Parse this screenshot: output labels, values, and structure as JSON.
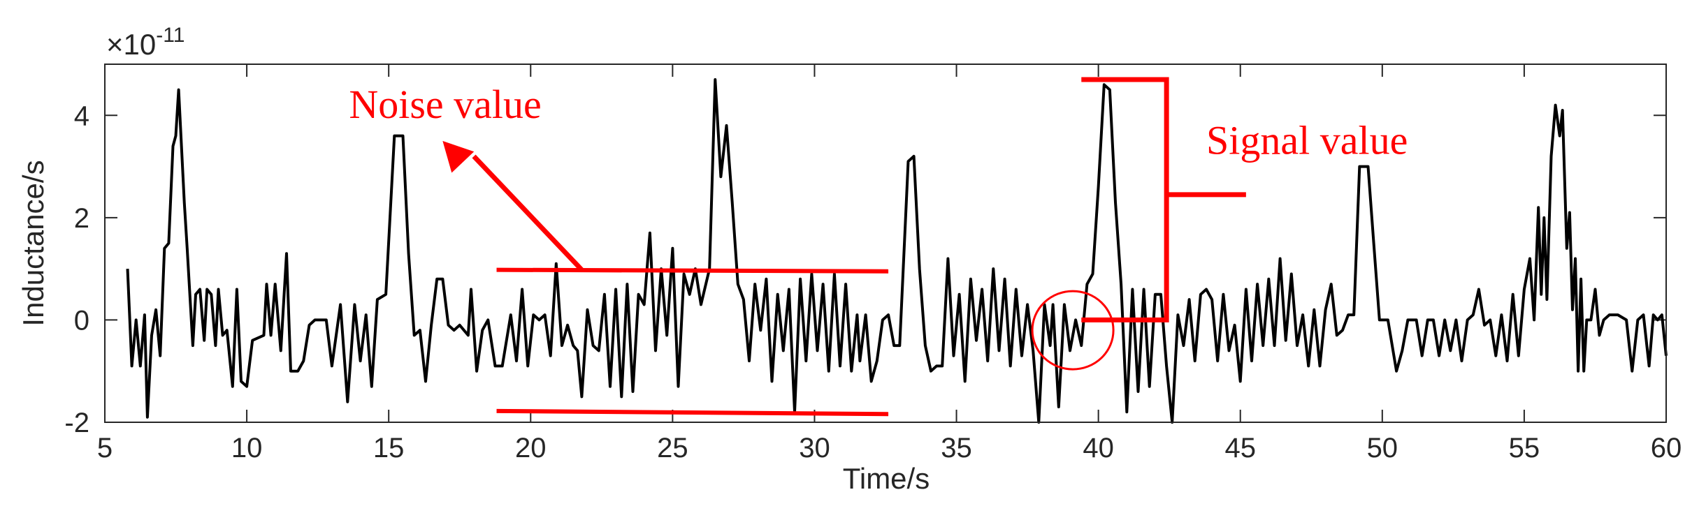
{
  "chart_data": {
    "type": "line",
    "xlabel": "Time/s",
    "ylabel": "Inductance/s",
    "xlim": [
      5,
      60
    ],
    "ylim": [
      -2,
      5
    ],
    "y_exponent": {
      "base": "×10",
      "power": "-11"
    },
    "xticks": [
      5,
      10,
      15,
      20,
      25,
      30,
      35,
      40,
      45,
      50,
      55,
      60
    ],
    "yticks": [
      -2,
      0,
      2,
      4
    ],
    "grid": false,
    "line_color": "#000000",
    "annotation_color": "#ff0000",
    "series": [
      {
        "values": [
          [
            5.8,
            1.0
          ],
          [
            5.95,
            -0.9
          ],
          [
            6.1,
            0.0
          ],
          [
            6.25,
            -0.9
          ],
          [
            6.4,
            0.1
          ],
          [
            6.5,
            -1.9
          ],
          [
            6.65,
            -0.3
          ],
          [
            6.8,
            0.2
          ],
          [
            6.95,
            -0.7
          ],
          [
            7.1,
            1.4
          ],
          [
            7.25,
            1.5
          ],
          [
            7.4,
            3.4
          ],
          [
            7.5,
            3.6
          ],
          [
            7.6,
            4.5
          ],
          [
            7.8,
            2.3
          ],
          [
            7.9,
            1.4
          ],
          [
            8.1,
            -0.5
          ],
          [
            8.2,
            0.5
          ],
          [
            8.35,
            0.6
          ],
          [
            8.5,
            -0.4
          ],
          [
            8.6,
            0.6
          ],
          [
            8.75,
            0.5
          ],
          [
            8.9,
            -0.5
          ],
          [
            9.0,
            0.6
          ],
          [
            9.15,
            -0.3
          ],
          [
            9.3,
            -0.2
          ],
          [
            9.5,
            -1.3
          ],
          [
            9.65,
            0.6
          ],
          [
            9.8,
            -1.2
          ],
          [
            10.0,
            -1.3
          ],
          [
            10.2,
            -0.4
          ],
          [
            10.6,
            -0.3
          ],
          [
            10.7,
            0.7
          ],
          [
            10.85,
            -0.3
          ],
          [
            11.0,
            0.7
          ],
          [
            11.2,
            -0.6
          ],
          [
            11.4,
            1.3
          ],
          [
            11.55,
            -1.0
          ],
          [
            11.8,
            -1.0
          ],
          [
            12.0,
            -0.8
          ],
          [
            12.2,
            -0.1
          ],
          [
            12.4,
            0.0
          ],
          [
            12.8,
            0.0
          ],
          [
            13.0,
            -0.9
          ],
          [
            13.3,
            0.3
          ],
          [
            13.55,
            -1.6
          ],
          [
            13.8,
            0.3
          ],
          [
            14.0,
            -0.8
          ],
          [
            14.2,
            0.1
          ],
          [
            14.4,
            -1.3
          ],
          [
            14.6,
            0.4
          ],
          [
            14.9,
            0.5
          ],
          [
            15.2,
            3.6
          ],
          [
            15.5,
            3.6
          ],
          [
            15.7,
            1.3
          ],
          [
            15.9,
            -0.3
          ],
          [
            16.1,
            -0.2
          ],
          [
            16.3,
            -1.2
          ],
          [
            16.5,
            -0.1
          ],
          [
            16.7,
            0.8
          ],
          [
            16.9,
            0.8
          ],
          [
            17.1,
            -0.1
          ],
          [
            17.3,
            -0.2
          ],
          [
            17.5,
            -0.1
          ],
          [
            17.8,
            -0.3
          ],
          [
            17.9,
            0.6
          ],
          [
            18.1,
            -1.0
          ],
          [
            18.3,
            -0.2
          ],
          [
            18.5,
            0.0
          ],
          [
            18.75,
            -0.9
          ],
          [
            19.0,
            -0.9
          ],
          [
            19.3,
            0.1
          ],
          [
            19.5,
            -0.8
          ],
          [
            19.7,
            0.6
          ],
          [
            19.9,
            -0.9
          ],
          [
            20.1,
            0.1
          ],
          [
            20.3,
            0.0
          ],
          [
            20.5,
            0.1
          ],
          [
            20.7,
            -0.7
          ],
          [
            20.9,
            1.1
          ],
          [
            21.1,
            -0.5
          ],
          [
            21.3,
            -0.1
          ],
          [
            21.5,
            -0.5
          ],
          [
            21.65,
            -0.6
          ],
          [
            21.8,
            -1.5
          ],
          [
            22.0,
            0.2
          ],
          [
            22.2,
            -0.5
          ],
          [
            22.4,
            -0.6
          ],
          [
            22.6,
            0.5
          ],
          [
            22.8,
            -1.3
          ],
          [
            23.0,
            0.6
          ],
          [
            23.2,
            -1.5
          ],
          [
            23.4,
            0.7
          ],
          [
            23.6,
            -1.4
          ],
          [
            23.8,
            0.5
          ],
          [
            24.0,
            0.3
          ],
          [
            24.2,
            1.7
          ],
          [
            24.4,
            -0.6
          ],
          [
            24.6,
            1.0
          ],
          [
            24.8,
            -0.3
          ],
          [
            25.0,
            1.4
          ],
          [
            25.2,
            -1.3
          ],
          [
            25.4,
            0.9
          ],
          [
            25.6,
            0.5
          ],
          [
            25.8,
            1.0
          ],
          [
            26.0,
            0.3
          ],
          [
            26.3,
            1.0
          ],
          [
            26.5,
            4.7
          ],
          [
            26.7,
            2.8
          ],
          [
            26.9,
            3.8
          ],
          [
            27.1,
            2.3
          ],
          [
            27.3,
            0.7
          ],
          [
            27.5,
            0.4
          ],
          [
            27.7,
            -0.8
          ],
          [
            27.9,
            0.7
          ],
          [
            28.1,
            -0.2
          ],
          [
            28.3,
            0.8
          ],
          [
            28.5,
            -1.2
          ],
          [
            28.7,
            0.5
          ],
          [
            28.9,
            -0.6
          ],
          [
            29.1,
            0.6
          ],
          [
            29.3,
            -1.8
          ],
          [
            29.5,
            0.8
          ],
          [
            29.7,
            -0.8
          ],
          [
            29.9,
            0.9
          ],
          [
            30.1,
            -0.6
          ],
          [
            30.3,
            0.7
          ],
          [
            30.5,
            -1.0
          ],
          [
            30.7,
            0.9
          ],
          [
            30.9,
            -0.9
          ],
          [
            31.1,
            0.7
          ],
          [
            31.3,
            -1.0
          ],
          [
            31.5,
            0.1
          ],
          [
            31.6,
            -0.8
          ],
          [
            31.8,
            0.1
          ],
          [
            32.0,
            -1.2
          ],
          [
            32.2,
            -0.8
          ],
          [
            32.4,
            0.0
          ],
          [
            32.6,
            0.1
          ],
          [
            32.8,
            -0.5
          ],
          [
            33.0,
            -0.5
          ],
          [
            33.3,
            3.1
          ],
          [
            33.5,
            3.2
          ],
          [
            33.7,
            1.0
          ],
          [
            33.9,
            -0.5
          ],
          [
            34.1,
            -1.0
          ],
          [
            34.3,
            -0.9
          ],
          [
            34.5,
            -0.9
          ],
          [
            34.7,
            1.2
          ],
          [
            34.9,
            -0.7
          ],
          [
            35.1,
            0.5
          ],
          [
            35.3,
            -1.2
          ],
          [
            35.5,
            0.8
          ],
          [
            35.7,
            -0.4
          ],
          [
            35.9,
            0.6
          ],
          [
            36.1,
            -0.8
          ],
          [
            36.3,
            1.0
          ],
          [
            36.5,
            -0.6
          ],
          [
            36.7,
            0.8
          ],
          [
            36.9,
            -0.9
          ],
          [
            37.1,
            0.6
          ],
          [
            37.3,
            -0.7
          ],
          [
            37.5,
            0.3
          ],
          [
            37.7,
            -0.6
          ],
          [
            37.9,
            -2.0
          ],
          [
            38.1,
            0.3
          ],
          [
            38.3,
            -0.5
          ],
          [
            38.4,
            0.3
          ],
          [
            38.6,
            -1.7
          ],
          [
            38.8,
            0.3
          ],
          [
            39.0,
            -0.6
          ],
          [
            39.2,
            0.0
          ],
          [
            39.4,
            -0.5
          ],
          [
            39.6,
            0.7
          ],
          [
            39.8,
            0.9
          ],
          [
            40.0,
            2.6
          ],
          [
            40.2,
            4.6
          ],
          [
            40.4,
            4.5
          ],
          [
            40.6,
            2.3
          ],
          [
            40.8,
            0.7
          ],
          [
            41.0,
            -1.8
          ],
          [
            41.2,
            0.6
          ],
          [
            41.4,
            -1.4
          ],
          [
            41.6,
            0.6
          ],
          [
            41.8,
            -1.3
          ],
          [
            42.0,
            0.5
          ],
          [
            42.2,
            0.5
          ],
          [
            42.4,
            -0.9
          ],
          [
            42.6,
            -2.0
          ],
          [
            42.8,
            0.1
          ],
          [
            43.0,
            -0.5
          ],
          [
            43.2,
            0.4
          ],
          [
            43.4,
            -0.8
          ],
          [
            43.6,
            0.5
          ],
          [
            43.8,
            0.6
          ],
          [
            44.0,
            0.4
          ],
          [
            44.2,
            -0.8
          ],
          [
            44.4,
            0.5
          ],
          [
            44.6,
            -0.6
          ],
          [
            44.8,
            -0.1
          ],
          [
            45.0,
            -1.2
          ],
          [
            45.2,
            0.6
          ],
          [
            45.4,
            -0.8
          ],
          [
            45.6,
            0.7
          ],
          [
            45.8,
            -0.5
          ],
          [
            46.0,
            0.8
          ],
          [
            46.2,
            -0.5
          ],
          [
            46.4,
            1.2
          ],
          [
            46.6,
            -0.4
          ],
          [
            46.8,
            0.9
          ],
          [
            47.0,
            -0.5
          ],
          [
            47.2,
            0.1
          ],
          [
            47.4,
            -0.9
          ],
          [
            47.6,
            0.2
          ],
          [
            47.8,
            -0.9
          ],
          [
            48.0,
            0.2
          ],
          [
            48.2,
            0.7
          ],
          [
            48.4,
            -0.3
          ],
          [
            48.6,
            -0.2
          ],
          [
            48.8,
            0.1
          ],
          [
            49.0,
            0.1
          ],
          [
            49.2,
            3.0
          ],
          [
            49.5,
            3.0
          ],
          [
            49.7,
            1.5
          ],
          [
            49.9,
            0.0
          ],
          [
            50.2,
            0.0
          ],
          [
            50.5,
            -1.0
          ],
          [
            50.7,
            -0.6
          ],
          [
            50.9,
            0.0
          ],
          [
            51.2,
            0.0
          ],
          [
            51.4,
            -0.7
          ],
          [
            51.6,
            0.0
          ],
          [
            51.8,
            0.0
          ],
          [
            52.0,
            -0.7
          ],
          [
            52.2,
            0.0
          ],
          [
            52.4,
            -0.6
          ],
          [
            52.6,
            0.0
          ],
          [
            52.8,
            -0.8
          ],
          [
            53.0,
            0.0
          ],
          [
            53.2,
            0.1
          ],
          [
            53.4,
            0.6
          ],
          [
            53.6,
            -0.1
          ],
          [
            53.8,
            0.0
          ],
          [
            54.0,
            -0.7
          ],
          [
            54.2,
            0.1
          ],
          [
            54.4,
            -0.8
          ],
          [
            54.6,
            0.5
          ],
          [
            54.8,
            -0.7
          ],
          [
            55.0,
            0.6
          ],
          [
            55.2,
            1.2
          ],
          [
            55.35,
            0.0
          ],
          [
            55.5,
            2.2
          ],
          [
            55.6,
            0.5
          ],
          [
            55.7,
            2.0
          ],
          [
            55.8,
            0.4
          ],
          [
            55.95,
            3.2
          ],
          [
            56.1,
            4.2
          ],
          [
            56.25,
            3.6
          ],
          [
            56.35,
            4.1
          ],
          [
            56.5,
            1.4
          ],
          [
            56.6,
            2.1
          ],
          [
            56.7,
            0.2
          ],
          [
            56.8,
            1.2
          ],
          [
            56.9,
            -1.0
          ],
          [
            57.0,
            0.8
          ],
          [
            57.1,
            -1.0
          ],
          [
            57.2,
            0.0
          ],
          [
            57.35,
            0.0
          ],
          [
            57.5,
            0.6
          ],
          [
            57.65,
            -0.3
          ],
          [
            57.8,
            0.0
          ],
          [
            58.0,
            0.1
          ],
          [
            58.3,
            0.1
          ],
          [
            58.6,
            0.0
          ],
          [
            58.8,
            -1.0
          ],
          [
            59.0,
            0.0
          ],
          [
            59.2,
            0.1
          ],
          [
            59.4,
            -0.9
          ],
          [
            59.55,
            0.1
          ],
          [
            59.7,
            0.0
          ],
          [
            59.85,
            0.1
          ],
          [
            60.0,
            -0.7
          ]
        ]
      }
    ],
    "annotations": {
      "noise_label": "Noise value",
      "signal_label": "Signal value"
    }
  }
}
